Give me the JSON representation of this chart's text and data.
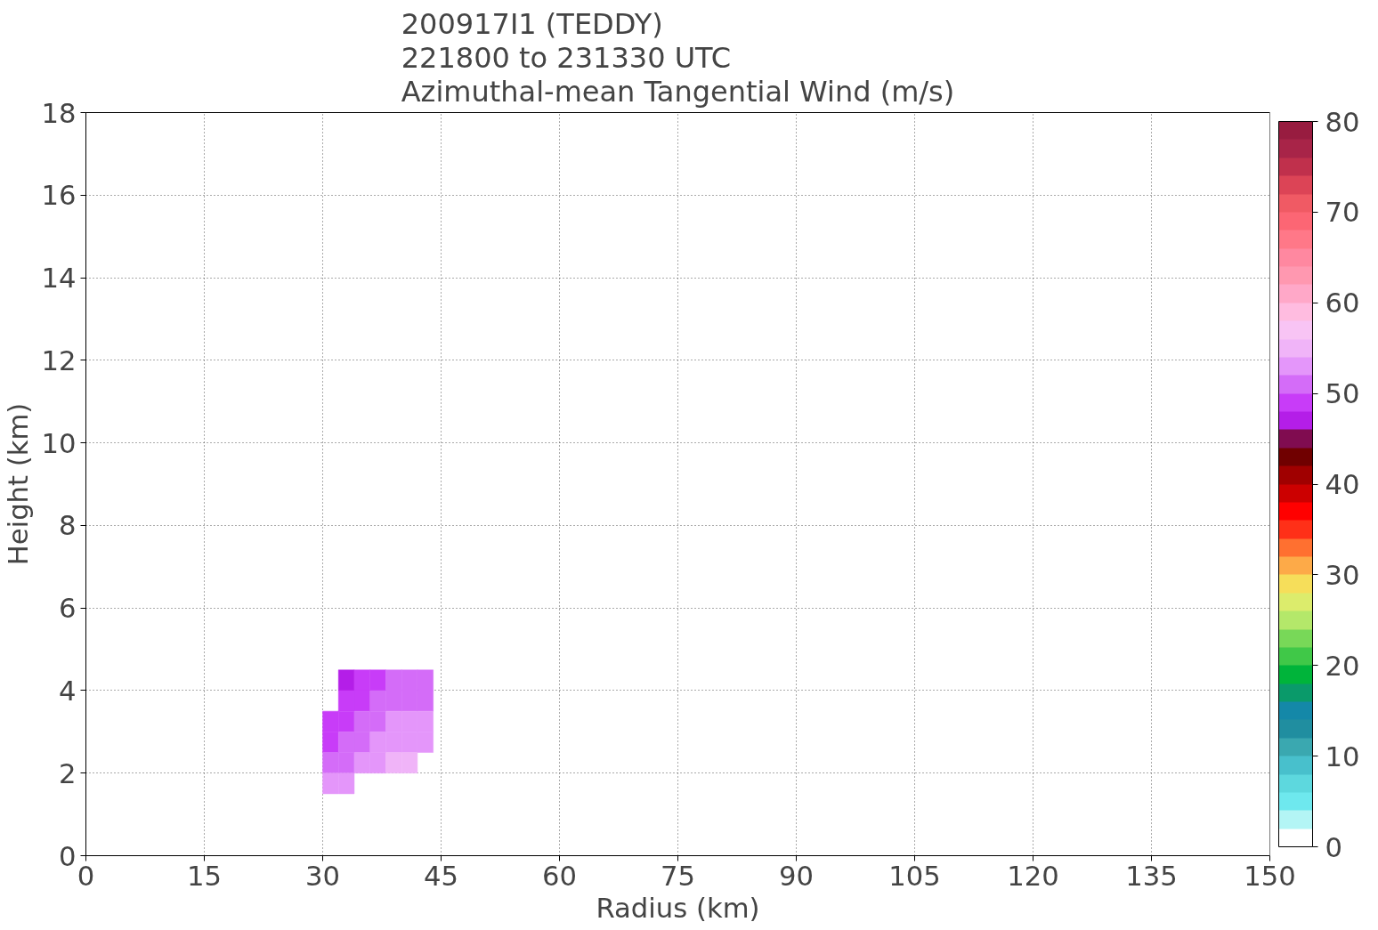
{
  "chart_data": {
    "type": "heatmap",
    "title": "200917I1 (TEDDY)\n221800 to 231330 UTC\nAzimuthal-mean Tangential Wind (m/s)",
    "xlabel": "Radius (km)",
    "ylabel": "Height (km)",
    "x": [
      31,
      33,
      35,
      37,
      39,
      41,
      43
    ],
    "y": [
      4.25,
      3.75,
      3.25,
      2.75,
      2.25,
      1.75
    ],
    "cells": [
      [
        null,
        47,
        49,
        49,
        51,
        51,
        51
      ],
      [
        null,
        49,
        49,
        51,
        51,
        51,
        51
      ],
      [
        49,
        49,
        51,
        51,
        53,
        53,
        53
      ],
      [
        49,
        51,
        51,
        53,
        53,
        53,
        53
      ],
      [
        51,
        51,
        53,
        53,
        55,
        55,
        null
      ],
      [
        53,
        53,
        null,
        null,
        null,
        null,
        null
      ]
    ],
    "xlim": [
      0,
      150
    ],
    "ylim": [
      0,
      18
    ],
    "xticks": [
      0,
      15,
      30,
      45,
      60,
      75,
      90,
      105,
      120,
      135,
      150
    ],
    "yticks": [
      0,
      2,
      4,
      6,
      8,
      10,
      12,
      14,
      16,
      18
    ],
    "grid": true,
    "clim": [
      0,
      80
    ],
    "cticks": [
      0,
      10,
      20,
      30,
      40,
      50,
      60,
      70,
      80
    ],
    "colors": [
      "#ffffff",
      "#b3f5f5",
      "#6ee8ee",
      "#5dd8de",
      "#48c0cc",
      "#3aa8b0",
      "#208ea0",
      "#1488a8",
      "#0a9a6a",
      "#00b43a",
      "#40c848",
      "#78d858",
      "#b4e86a",
      "#dcec6c",
      "#f6de5a",
      "#fdaa48",
      "#ff7030",
      "#ff3018",
      "#ff0000",
      "#cc0000",
      "#a00000",
      "#700000",
      "#800c50",
      "#b41ee8",
      "#c83cf8",
      "#d46cf8",
      "#e496fa",
      "#f0b4f8",
      "#f8c4f4",
      "#ffbce0",
      "#ffa8c8",
      "#ff98b0",
      "#ff88a0",
      "#ff7888",
      "#fc6674",
      "#f05a64",
      "#dc4456",
      "#c0304c",
      "#a82448",
      "#981c40"
    ]
  }
}
